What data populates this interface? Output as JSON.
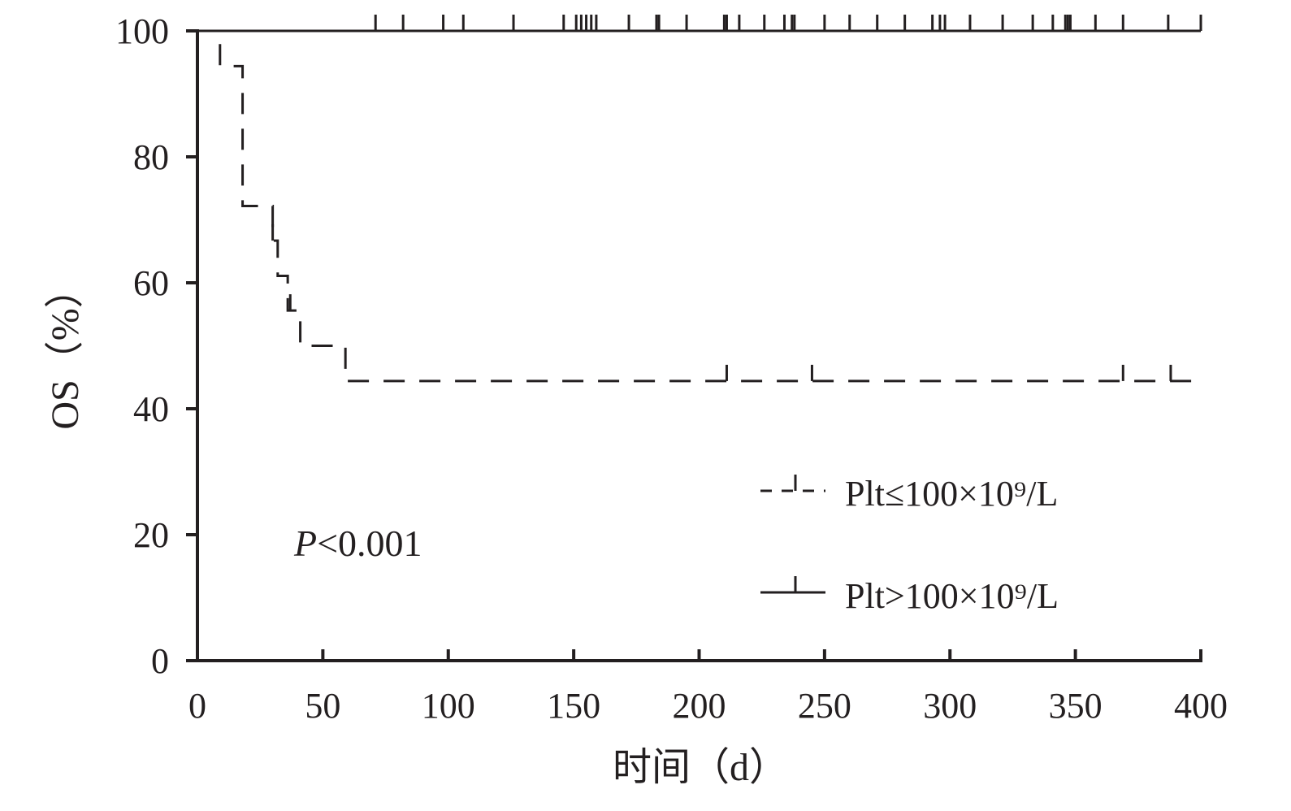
{
  "chart_data": {
    "type": "line",
    "subtype": "kaplan-meier",
    "xlabel": "时间（d）",
    "ylabel": "OS（%）",
    "xlim": [
      0,
      400
    ],
    "ylim": [
      0,
      100
    ],
    "xticks": [
      0,
      50,
      100,
      150,
      200,
      250,
      300,
      350,
      400
    ],
    "yticks": [
      0,
      20,
      40,
      60,
      80,
      100
    ],
    "xtick_labels": [
      "0",
      "50",
      "100",
      "150",
      "200",
      "250",
      "300",
      "350",
      "400"
    ],
    "ytick_labels": [
      "0",
      "20",
      "40",
      "60",
      "80",
      "100"
    ],
    "grid": false,
    "legend_position": "bottom-right",
    "annotation": {
      "italic": "P",
      "rest": "<0.001"
    },
    "series": [
      {
        "name": "Plt≤100×10⁹/L",
        "style": "dashed",
        "color": "#231f20",
        "steps": [
          [
            0,
            100
          ],
          [
            9,
            94.4
          ],
          [
            18,
            72.2
          ],
          [
            30,
            66.7
          ],
          [
            32,
            61.1
          ],
          [
            36,
            55.6
          ],
          [
            41,
            50
          ],
          [
            59,
            44.4
          ],
          [
            400,
            44.4
          ]
        ],
        "censored": [
          [
            30,
            66.7
          ],
          [
            37,
            55.6
          ],
          [
            211,
            44.4
          ],
          [
            245,
            44.4
          ],
          [
            369,
            44.4
          ],
          [
            388,
            44.4
          ]
        ]
      },
      {
        "name": "Plt>100×10⁹/L",
        "style": "solid",
        "color": "#231f20",
        "steps": [
          [
            0,
            100
          ],
          [
            400,
            100
          ]
        ],
        "censored": [
          [
            71,
            100
          ],
          [
            82,
            100
          ],
          [
            98,
            100
          ],
          [
            106,
            100
          ],
          [
            126,
            100
          ],
          [
            146,
            100
          ],
          [
            151,
            100
          ],
          [
            153,
            100
          ],
          [
            155,
            100
          ],
          [
            157,
            100
          ],
          [
            159,
            100
          ],
          [
            172,
            100
          ],
          [
            183,
            100
          ],
          [
            184,
            100
          ],
          [
            195,
            100
          ],
          [
            210,
            100
          ],
          [
            211,
            100
          ],
          [
            216,
            100
          ],
          [
            226,
            100
          ],
          [
            234,
            100
          ],
          [
            237,
            100
          ],
          [
            238,
            100
          ],
          [
            250,
            100
          ],
          [
            260,
            100
          ],
          [
            271,
            100
          ],
          [
            282,
            100
          ],
          [
            293,
            100
          ],
          [
            296,
            100
          ],
          [
            298,
            100
          ],
          [
            308,
            100
          ],
          [
            321,
            100
          ],
          [
            333,
            100
          ],
          [
            341,
            100
          ],
          [
            346,
            100
          ],
          [
            347,
            100
          ],
          [
            348,
            100
          ],
          [
            358,
            100
          ],
          [
            369,
            100
          ],
          [
            387,
            100
          ],
          [
            400,
            100
          ]
        ]
      }
    ]
  }
}
